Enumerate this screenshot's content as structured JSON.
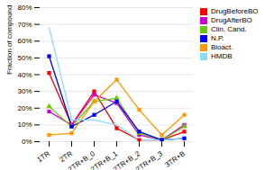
{
  "chart_data": {
    "type": "line",
    "categories": [
      "1TR",
      "2TR",
      "2TR+B_0",
      "2TR+B_1",
      "2TR+B_2",
      "2TR+B_3",
      "3TR+B"
    ],
    "series": [
      {
        "name": "DrugBeforeBO",
        "color": "#FF0000",
        "marker": "square",
        "values": [
          41,
          10,
          30,
          8,
          1,
          1,
          6
        ]
      },
      {
        "name": "DrugAfterBO",
        "color": "#CC00CC",
        "marker": "square",
        "values": [
          18,
          10,
          28,
          23,
          4,
          1,
          10
        ]
      },
      {
        "name": "Clin. Cand.",
        "color": "#66CC00",
        "marker": "triangle",
        "values": [
          21,
          9,
          24,
          26,
          5,
          1,
          9
        ]
      },
      {
        "name": "N.P.",
        "color": "#0000FF",
        "marker": "square",
        "values": [
          51,
          9,
          16,
          24,
          6,
          1,
          2
        ]
      },
      {
        "name": "Bioact.",
        "color": "#FF9900",
        "marker": "square",
        "values": [
          4,
          5,
          24,
          37,
          19,
          4,
          16
        ]
      },
      {
        "name": "HMDB",
        "color": "#88DDFF",
        "marker": "none",
        "values": [
          68,
          13,
          13,
          10,
          1,
          1,
          2
        ]
      }
    ],
    "ylabel": "Fraction of compound",
    "ylim": [
      0,
      80
    ],
    "yticks": [
      {
        "value": 0,
        "label": "0%"
      },
      {
        "value": 10,
        "label": "10%"
      },
      {
        "value": 20,
        "label": "20%"
      },
      {
        "value": 30,
        "label": "30%"
      },
      {
        "value": 40,
        "label": "40%"
      },
      {
        "value": 50,
        "label": "50%"
      },
      {
        "value": 60,
        "label": "60%"
      },
      {
        "value": 70,
        "label": "70%"
      },
      {
        "value": 80,
        "label": "80%"
      }
    ],
    "grid": true,
    "legend": "right"
  }
}
